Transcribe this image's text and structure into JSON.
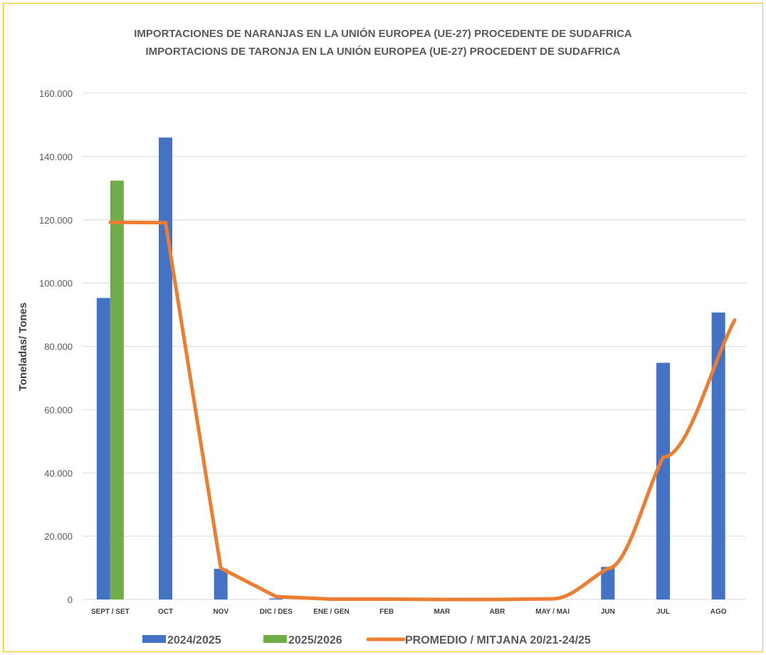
{
  "colors": {
    "series_2024_2025": "#4472C4",
    "series_2025_2026": "#70AD47",
    "average_line": "#ED7D31",
    "grid": "#D9D9D9",
    "border": "#F2C200"
  },
  "chart_data": {
    "type": "bar",
    "title": [
      "IMPORTACIONES DE NARANJAS EN LA UNIÓN EUROPEA (UE-27) PROCEDENTE DE SUDAFRICA",
      "IMPORTACIONS DE TARONJA EN LA UNIÓN EUROPEA (UE-27) PROCEDENT DE SUDAFRICA"
    ],
    "ylabel": "Toneladas/ Tones",
    "xlabel": "",
    "ylim": [
      0,
      160000
    ],
    "yticks": [
      "0",
      "20.000",
      "40.000",
      "60.000",
      "80.000",
      "100.000",
      "120.000",
      "140.000",
      "160.000"
    ],
    "categories": [
      "SEPT / SET",
      "OCT",
      "NOV",
      "DIC / DES",
      "ENE / GEN",
      "FEB",
      "MAR",
      "ABR",
      "MAY / MAI",
      "JUN",
      "JUL",
      "AGO"
    ],
    "series": [
      {
        "name": "2024/2025",
        "kind": "bar",
        "values": [
          95300,
          146000,
          9700,
          300,
          0,
          0,
          0,
          0,
          0,
          10300,
          74800,
          90700
        ]
      },
      {
        "name": "2025/2026",
        "kind": "bar",
        "values": [
          132400,
          null,
          null,
          null,
          null,
          null,
          null,
          null,
          null,
          null,
          null,
          null
        ]
      },
      {
        "name": "PROMEDIO / MITJANA  20/21-24/25",
        "kind": "line",
        "values": [
          119200,
          119100,
          9900,
          900,
          100,
          100,
          0,
          0,
          200,
          9800,
          45000,
          88300
        ]
      }
    ],
    "grid": true,
    "legend": "bottom"
  }
}
